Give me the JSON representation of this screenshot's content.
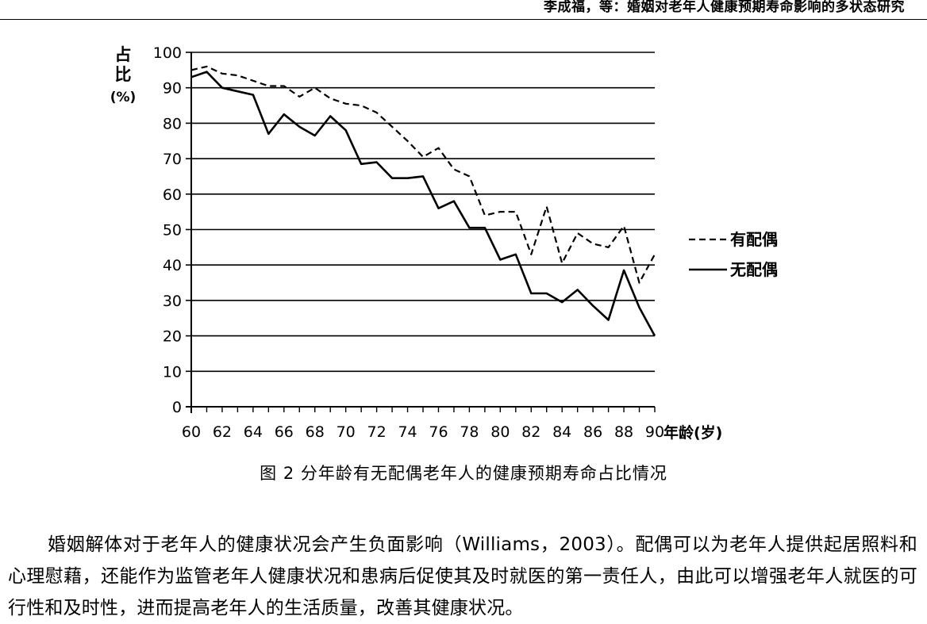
{
  "header": {
    "running_title": "李成福，等：婚姻对老年人健康预期寿命影响的多状态研究"
  },
  "figure": {
    "caption": "图 2  分年龄有无配偶老年人的健康预期寿命占比情况"
  },
  "chart_data": {
    "type": "line",
    "ylabel_lines": [
      "占",
      "比",
      "(%)"
    ],
    "xlabel": "年龄(岁)",
    "xlim": [
      60,
      90
    ],
    "ylim": [
      0,
      100
    ],
    "yticks": [
      0,
      10,
      20,
      30,
      40,
      50,
      60,
      70,
      80,
      90,
      100
    ],
    "xticks": [
      60,
      62,
      64,
      66,
      68,
      70,
      72,
      74,
      76,
      78,
      80,
      82,
      84,
      86,
      88,
      90
    ],
    "grid": "horizontal",
    "legend_position": "right",
    "x": [
      60,
      61,
      62,
      63,
      64,
      65,
      66,
      67,
      68,
      69,
      70,
      71,
      72,
      73,
      74,
      75,
      76,
      77,
      78,
      79,
      80,
      81,
      82,
      83,
      84,
      85,
      86,
      87,
      88,
      89,
      90
    ],
    "series": [
      {
        "name": "有配偶",
        "style": "dashed",
        "values": [
          95,
          96,
          94,
          93.5,
          92,
          90.5,
          90.5,
          87.5,
          90,
          87,
          85.5,
          85,
          83,
          79,
          75,
          70.5,
          73,
          67,
          65,
          54,
          55,
          55,
          43,
          56.5,
          40.5,
          49,
          46,
          45,
          51,
          35,
          43
        ]
      },
      {
        "name": "无配偶",
        "style": "solid",
        "values": [
          93,
          94.5,
          90,
          89,
          88,
          77,
          82.5,
          79,
          76.5,
          82,
          78,
          68.5,
          69,
          64.5,
          64.5,
          65,
          56,
          58,
          50.5,
          50.5,
          41.5,
          43,
          32,
          32,
          29.5,
          33,
          28.5,
          24.5,
          38.5,
          28,
          20
        ]
      }
    ]
  },
  "body_text": "婚姻解体对于老年人的健康状况会产生负面影响（Williams，2003）。配偶可以为老年人提供起居照料和心理慰藉，还能作为监管老年人健康状况和患病后促使其及时就医的第一责任人，由此可以增强老年人就医的可行性和及时性，进而提高老年人的生活质量，改善其健康状况。"
}
